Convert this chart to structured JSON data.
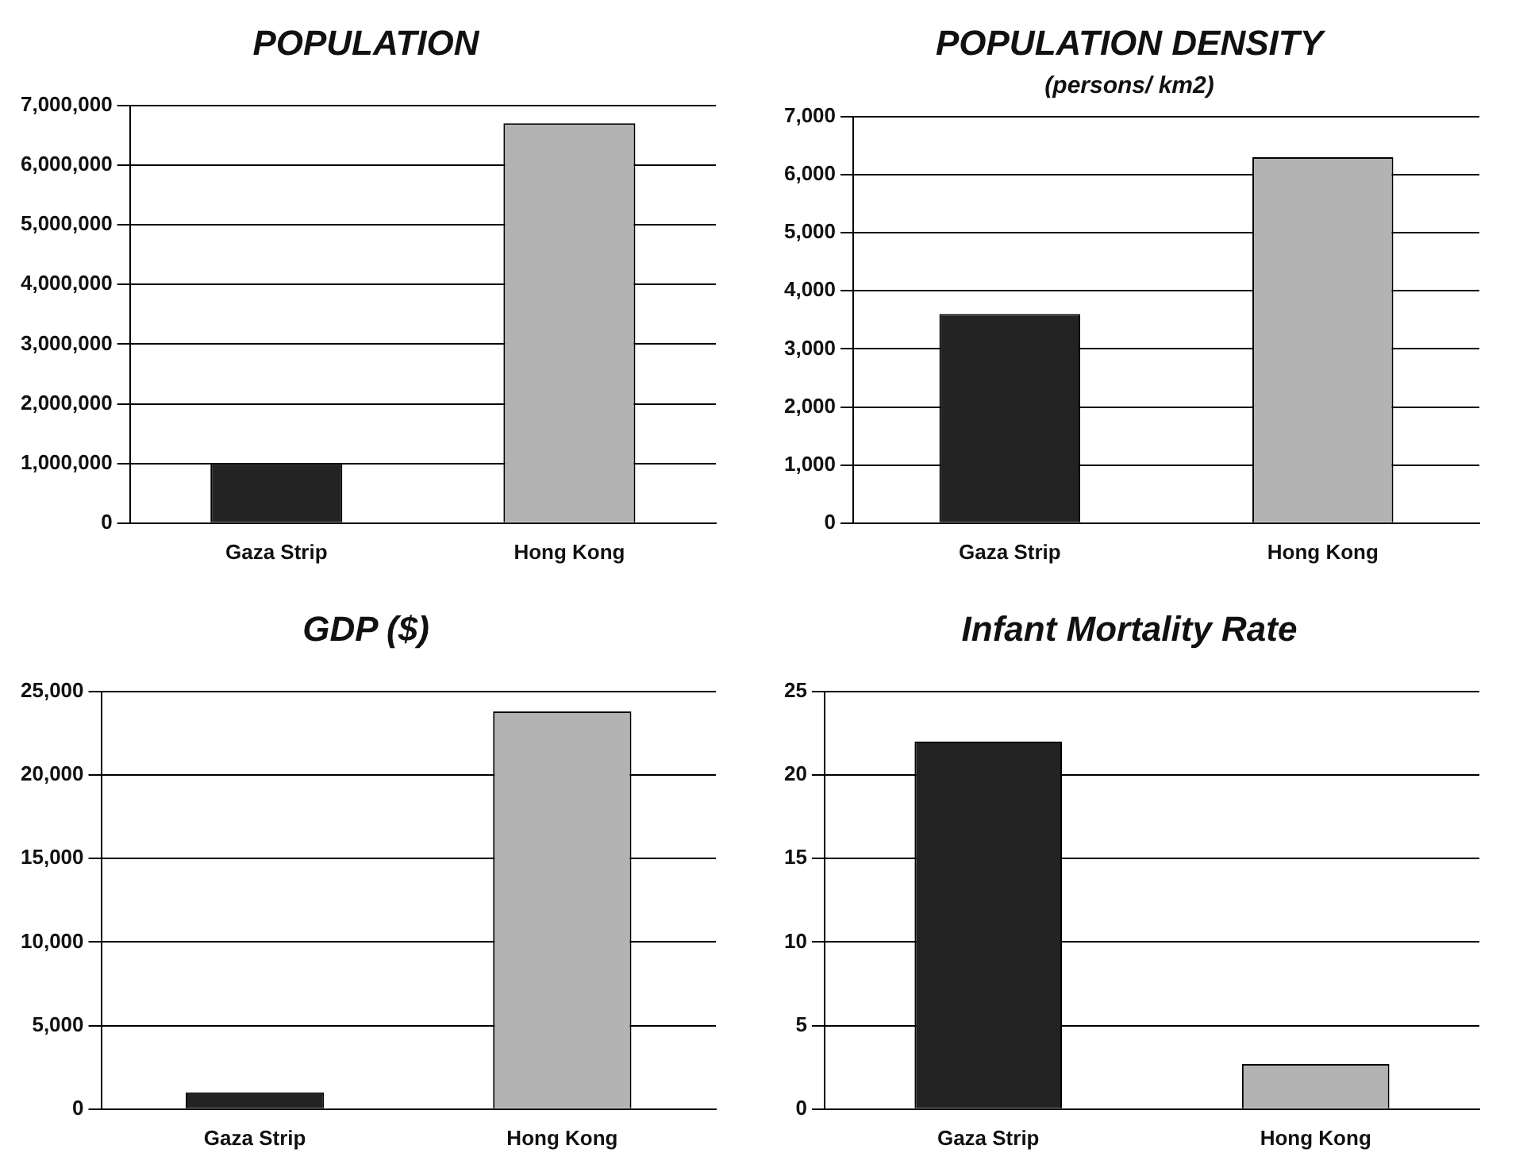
{
  "chart_data": [
    {
      "type": "bar",
      "title": "POPULATION",
      "categories": [
        "Gaza Strip",
        "Hong Kong"
      ],
      "values": [
        1000000,
        6700000
      ],
      "colors": [
        "#232323",
        "#b3b3b3"
      ],
      "ylim": [
        0,
        7000000
      ],
      "yticks": [
        {
          "value": 0,
          "label": "0"
        },
        {
          "value": 1000000,
          "label": "1,000,000"
        },
        {
          "value": 2000000,
          "label": "2,000,000"
        },
        {
          "value": 3000000,
          "label": "3,000,000"
        },
        {
          "value": 4000000,
          "label": "4,000,000"
        },
        {
          "value": 5000000,
          "label": "5,000,000"
        },
        {
          "value": 6000000,
          "label": "6,000,000"
        },
        {
          "value": 7000000,
          "label": "7,000,000"
        }
      ],
      "grid": "y"
    },
    {
      "type": "bar",
      "title": "POPULATION DENSITY",
      "subtitle": "(persons/ km2)",
      "categories": [
        "Gaza Strip",
        "Hong Kong"
      ],
      "values": [
        3600,
        6300
      ],
      "colors": [
        "#232323",
        "#b3b3b3"
      ],
      "ylim": [
        0,
        7000
      ],
      "yticks": [
        {
          "value": 0,
          "label": "0"
        },
        {
          "value": 1000,
          "label": "1,000"
        },
        {
          "value": 2000,
          "label": "2,000"
        },
        {
          "value": 3000,
          "label": "3,000"
        },
        {
          "value": 4000,
          "label": "4,000"
        },
        {
          "value": 5000,
          "label": "5,000"
        },
        {
          "value": 6000,
          "label": "6,000"
        },
        {
          "value": 7000,
          "label": "7,000"
        }
      ],
      "grid": "y"
    },
    {
      "type": "bar",
      "title": "GDP ($)",
      "categories": [
        "Gaza Strip",
        "Hong Kong"
      ],
      "values": [
        1000,
        23800
      ],
      "colors": [
        "#232323",
        "#b3b3b3"
      ],
      "ylim": [
        0,
        25000
      ],
      "yticks": [
        {
          "value": 0,
          "label": "0"
        },
        {
          "value": 5000,
          "label": "5,000"
        },
        {
          "value": 10000,
          "label": "10,000"
        },
        {
          "value": 15000,
          "label": "15,000"
        },
        {
          "value": 20000,
          "label": "20,000"
        },
        {
          "value": 25000,
          "label": "25,000"
        }
      ],
      "grid": "y"
    },
    {
      "type": "bar",
      "title": "Infant Mortality Rate",
      "categories": [
        "Gaza Strip",
        "Hong Kong"
      ],
      "values": [
        22,
        2.7
      ],
      "colors": [
        "#232323",
        "#b3b3b3"
      ],
      "ylim": [
        0,
        25
      ],
      "yticks": [
        0,
        5,
        10,
        15,
        20,
        25
      ],
      "grid": "y"
    }
  ]
}
